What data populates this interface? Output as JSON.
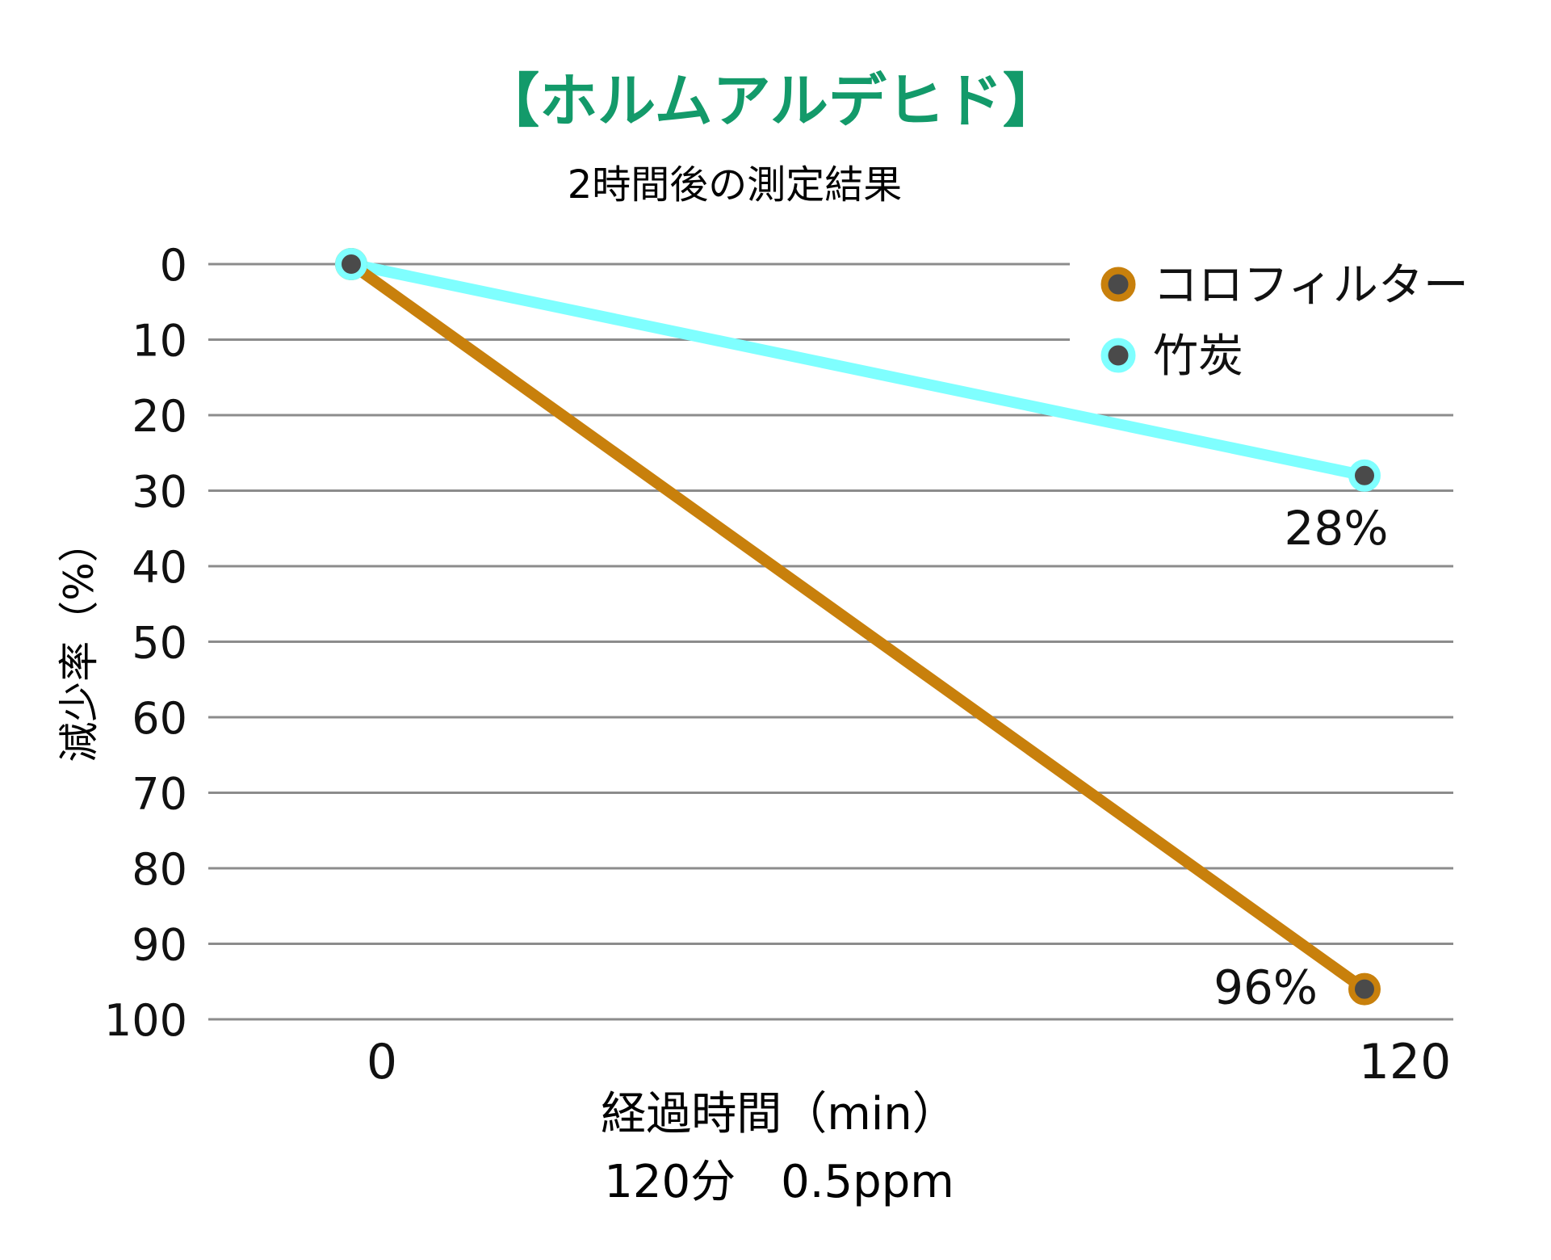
{
  "chart_data": {
    "type": "line",
    "title": "【ホルムアルデヒド】",
    "subtitle": "2時間後の測定結果",
    "xlabel": "経過時間（min）",
    "xlabel_sub": "120分　0.5ppm",
    "ylabel": "減少率（%）",
    "x_ticks": [
      "0",
      "120"
    ],
    "y_ticks": [
      "0",
      "10",
      "20",
      "30",
      "40",
      "50",
      "60",
      "70",
      "80",
      "90",
      "100"
    ],
    "ylim": [
      0,
      100
    ],
    "y_inverted": true,
    "legend_position": "top-right",
    "series": [
      {
        "name": "コロフィルター",
        "color": "#C8800C",
        "x": [
          0,
          120
        ],
        "values": [
          0,
          96
        ],
        "end_label": "96%"
      },
      {
        "name": "竹炭",
        "color": "#7FFFFF",
        "x": [
          0,
          120
        ],
        "values": [
          0,
          28
        ],
        "end_label": "28%"
      }
    ]
  },
  "colors": {
    "title": "#139A6A",
    "grid": "#8C8C8C",
    "marker_fill": "#4A4A4A"
  }
}
